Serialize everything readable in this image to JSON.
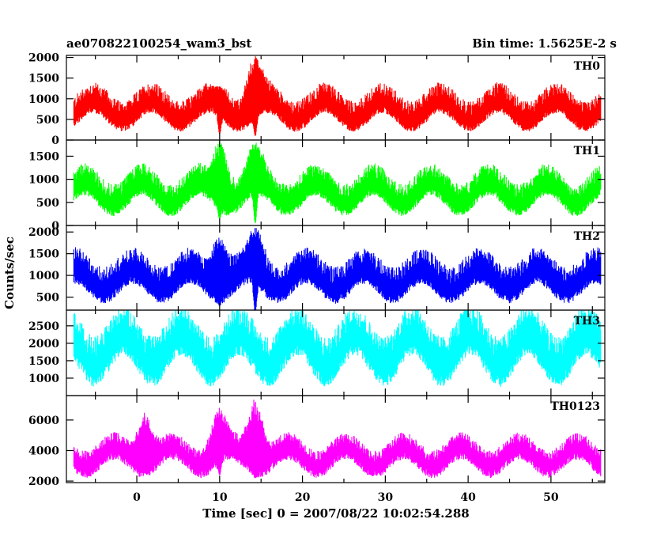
{
  "header": {
    "left_title": "ae070822100254_wam3_bst",
    "right_title": "Bin time: 1.5625E-2 s"
  },
  "chart_data": {
    "type": "line",
    "xlabel": "Time [sec] 0 = 2007/08/22 10:02:54.288",
    "ylabel": "Counts/sec",
    "xlim": [
      -8.5,
      56.5
    ],
    "data_x_range": [
      -7.6,
      56.0
    ],
    "x_ticks": [
      0,
      10,
      20,
      30,
      40,
      50
    ],
    "grid": false,
    "panels": [
      {
        "name": "TH0",
        "color": "#ff0000",
        "ylim": [
          0,
          2050
        ],
        "y_ticks": [
          0,
          500,
          1000,
          1500,
          2000
        ],
        "baseline_min": 450,
        "baseline_max": 900,
        "noise_low": 250,
        "noise_high": 500,
        "features": [
          {
            "t": 10,
            "peak": 1300,
            "min_dip": 150
          },
          {
            "t": 14.3,
            "peak": 2050,
            "min_dip": 100
          }
        ]
      },
      {
        "name": "TH1",
        "color": "#00ff00",
        "ylim": [
          0,
          1850
        ],
        "y_ticks": [
          0,
          500,
          1000,
          1500
        ],
        "baseline_min": 450,
        "baseline_max": 900,
        "noise_low": 250,
        "noise_high": 450,
        "features": [
          {
            "t": 10,
            "peak": 1850,
            "min_dip": 150
          },
          {
            "t": 14.3,
            "peak": 1800,
            "min_dip": 50
          }
        ]
      },
      {
        "name": "TH2",
        "color": "#0000ff",
        "ylim": [
          200,
          2150
        ],
        "y_ticks": [
          500,
          1000,
          1500,
          2000
        ],
        "baseline_min": 650,
        "baseline_max": 1100,
        "noise_low": 300,
        "noise_high": 550,
        "features": [
          {
            "t": 10,
            "peak": 1950,
            "min_dip": 300
          },
          {
            "t": 14.3,
            "peak": 2100,
            "min_dip": 150
          }
        ]
      },
      {
        "name": "TH3",
        "color": "#00ffff",
        "ylim": [
          500,
          2950
        ],
        "y_ticks": [
          1000,
          1500,
          2000,
          2500
        ],
        "baseline_min": 1300,
        "baseline_max": 2200,
        "noise_low": 550,
        "noise_high": 900,
        "features": []
      },
      {
        "name": "TH0123",
        "color": "#ff00ff",
        "ylim": [
          1900,
          7600
        ],
        "y_ticks": [
          2000,
          4000,
          6000
        ],
        "baseline_min": 3000,
        "baseline_max": 4200,
        "noise_low": 800,
        "noise_high": 1000,
        "features": [
          {
            "t": 1,
            "peak": 6500,
            "min_dip": 2500
          },
          {
            "t": 10,
            "peak": 6800,
            "min_dip": 2400
          },
          {
            "t": 14.3,
            "peak": 7600,
            "min_dip": 2200
          }
        ]
      }
    ]
  }
}
